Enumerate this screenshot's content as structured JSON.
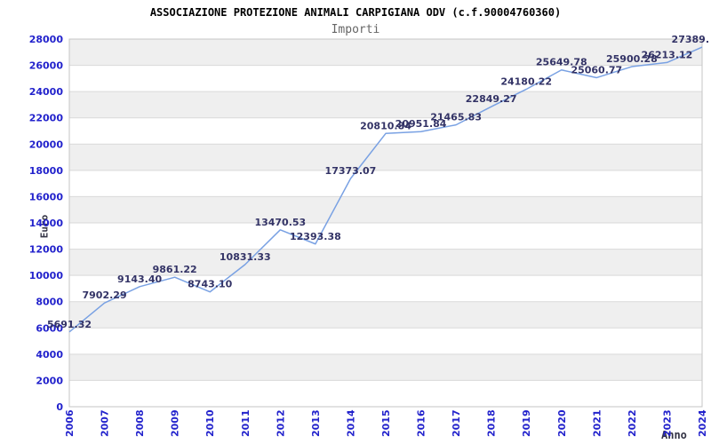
{
  "chart_data": {
    "type": "line",
    "title": "ASSOCIAZIONE PROTEZIONE ANIMALI CARPIGIANA ODV (c.f.90004760360)",
    "subtitle": "Importi",
    "xlabel": "Anno",
    "ylabel": "Euro",
    "categories": [
      "2006",
      "2007",
      "2008",
      "2009",
      "2010",
      "2011",
      "2012",
      "2013",
      "2014",
      "2015",
      "2016",
      "2017",
      "2018",
      "2019",
      "2020",
      "2021",
      "2022",
      "2023",
      "2024"
    ],
    "values": [
      5691.32,
      7902.29,
      9143.4,
      9861.22,
      8743.1,
      10831.33,
      13470.53,
      12393.38,
      17373.07,
      20810.84,
      20951.84,
      21465.83,
      22849.27,
      24180.22,
      25649.78,
      25060.77,
      25900.28,
      26213.12,
      27389.0
    ],
    "point_labels": [
      "5691.32",
      "7902.29",
      "9143.40",
      "9861.22",
      "8743.10",
      "10831.33",
      "13470.53",
      "12393.38",
      "17373.07",
      "20810.84",
      "20951.84",
      "21465.83",
      "22849.27",
      "24180.22",
      "25649.78",
      "25060.77",
      "25900.28",
      "26213.12",
      "27389."
    ],
    "ylim": [
      0,
      28000
    ],
    "ytick_step": 2000,
    "yticks": [
      "0",
      "2000",
      "4000",
      "6000",
      "8000",
      "10000",
      "12000",
      "14000",
      "16000",
      "18000",
      "20000",
      "22000",
      "24000",
      "26000",
      "28000"
    ],
    "grid": true,
    "legend_position": "none",
    "colors": {
      "line": "#79a1e3",
      "tick_label": "#2222cc",
      "point_label": "#333366",
      "axis_title": "#333344",
      "title": "#000000",
      "subtitle": "#666666",
      "band_gray": "#efefef",
      "band_white": "#ffffff",
      "gridline": "#d9d9d9",
      "plot_border": "#c6c6c6"
    }
  }
}
